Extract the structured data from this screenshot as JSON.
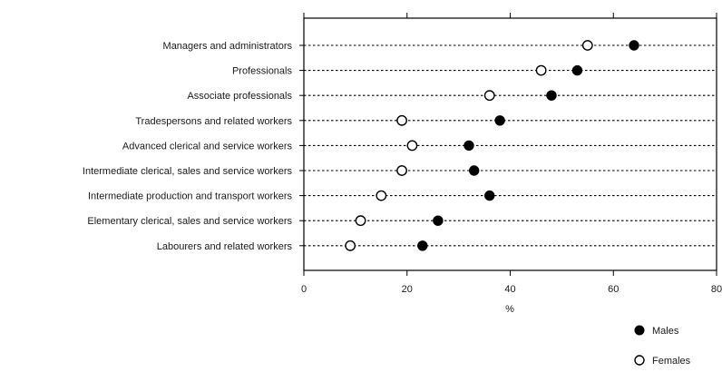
{
  "chart_data": {
    "type": "scatter",
    "categories": [
      "Managers and administrators",
      "Professionals",
      "Associate professionals",
      "Tradespersons and related workers",
      "Advanced clerical and service workers",
      "Intermediate clerical, sales and service workers",
      "Intermediate production and transport workers",
      "Elementary clerical, sales and service workers",
      "Labourers and related workers"
    ],
    "series": [
      {
        "name": "Males",
        "marker": "filled-circle",
        "color": "#000000",
        "values": [
          64,
          53,
          48,
          38,
          32,
          33,
          36,
          26,
          23
        ]
      },
      {
        "name": "Females",
        "marker": "open-circle",
        "color": "#000000",
        "values": [
          55,
          46,
          36,
          19,
          21,
          19,
          15,
          11,
          9
        ]
      }
    ],
    "xlabel": "%",
    "ylabel": "",
    "xlim": [
      0,
      80
    ],
    "xticks": [
      "0",
      "20",
      "40",
      "60",
      "80"
    ],
    "grid": false,
    "legend_position": "bottom-right"
  }
}
